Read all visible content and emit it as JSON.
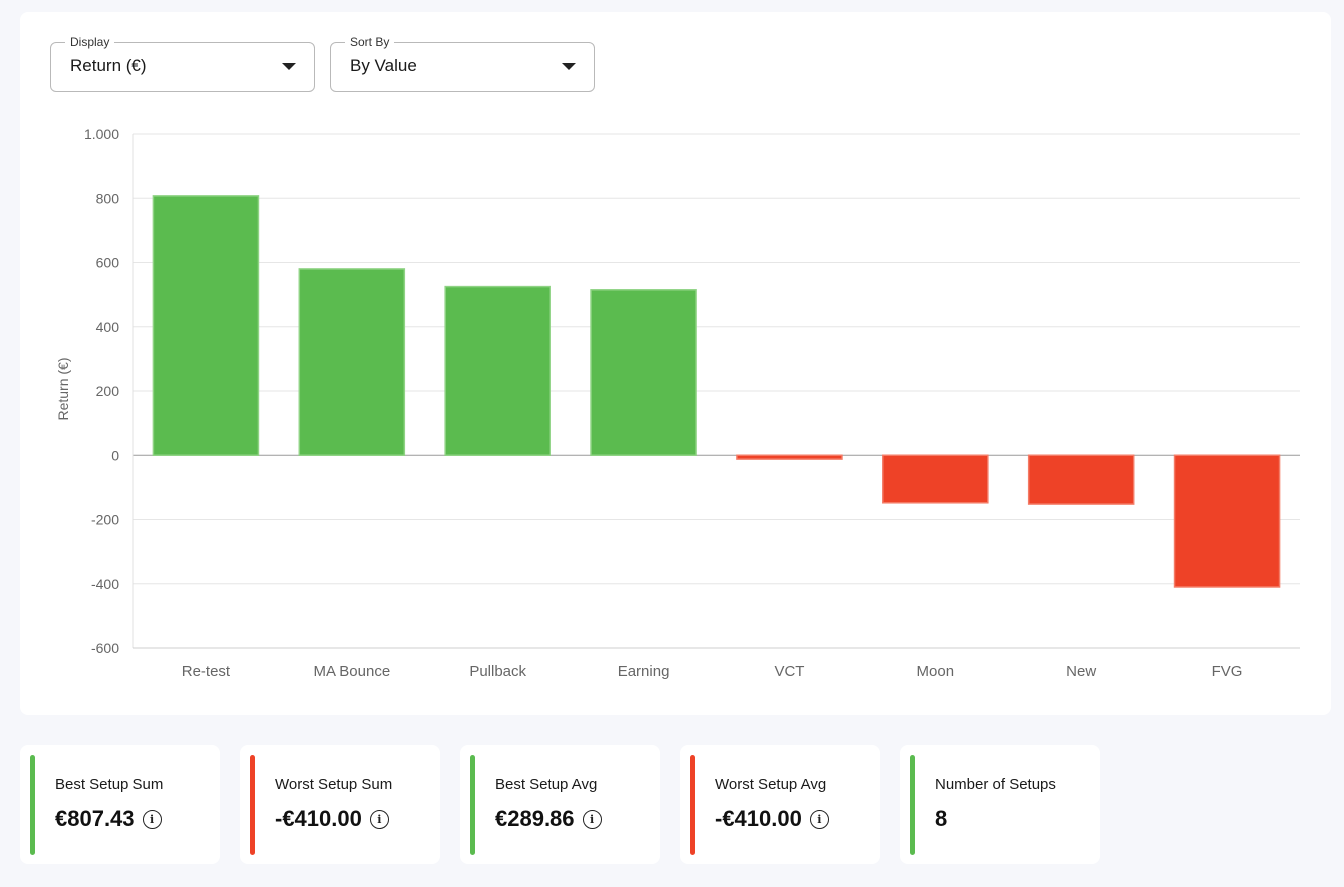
{
  "controls": {
    "display": {
      "label": "Display",
      "value": "Return (€)"
    },
    "sort_by": {
      "label": "Sort By",
      "value": "By Value"
    }
  },
  "colors": {
    "positive": "#5bbb4f",
    "negative": "#ee4227"
  },
  "chart_data": {
    "type": "bar",
    "categories": [
      "Re-test",
      "MA Bounce",
      "Pullback",
      "Earning",
      "VCT",
      "Moon",
      "New",
      "FVG"
    ],
    "values": [
      807.43,
      580,
      525,
      515,
      -12,
      -148,
      -152,
      -410
    ],
    "ylabel": "Return (€)",
    "ylim": [
      -600,
      1000
    ],
    "yticks": [
      -600,
      -400,
      -200,
      0,
      200,
      400,
      600,
      800,
      1000
    ],
    "ytick_labels": [
      "-600",
      "-400",
      "-200",
      "0",
      "200",
      "400",
      "600",
      "800",
      "1.000"
    ],
    "grid": true,
    "legend": "none"
  },
  "stats": [
    {
      "label": "Best Setup Sum",
      "value": "€807.43",
      "color": "#5bbb4f",
      "info": true,
      "icon": "info-icon"
    },
    {
      "label": "Worst Setup Sum",
      "value": "-€410.00",
      "color": "#ee4227",
      "info": true,
      "icon": "info-icon"
    },
    {
      "label": "Best Setup Avg",
      "value": "€289.86",
      "color": "#5bbb4f",
      "info": true,
      "icon": "info-icon"
    },
    {
      "label": "Worst Setup Avg",
      "value": "-€410.00",
      "color": "#ee4227",
      "info": true,
      "icon": "info-icon"
    },
    {
      "label": "Number of Setups",
      "value": "8",
      "color": "#5bbb4f",
      "info": false
    }
  ]
}
